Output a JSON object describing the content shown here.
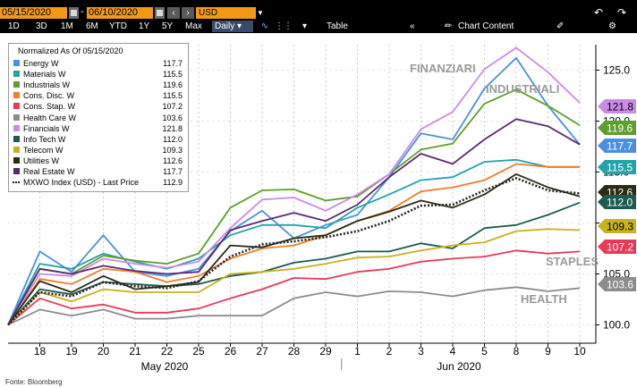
{
  "toolbar": {
    "start_date": "05/15/2020",
    "end_date": "06/10/2020",
    "prev_icon": "chevron-left",
    "next_icon": "chevron-right",
    "currency": "USD",
    "undo_icon": "undo-arrow",
    "redo_icon": "redo-arrow",
    "periods": [
      "1D",
      "3D",
      "1M",
      "6M",
      "YTD",
      "1Y",
      "5Y",
      "Max"
    ],
    "frequency": "Daily",
    "table_label": "Table",
    "chart_content_label": "Chart Content",
    "settings_icon": "gear"
  },
  "legend": {
    "title": "Normalized As Of 05/15/2020",
    "items": [
      {
        "name": "Energy W",
        "value": "117.7",
        "color": "#4a90e2"
      },
      {
        "name": "Materials W",
        "value": "115.5",
        "color": "#22a3a8"
      },
      {
        "name": "Industrials W",
        "value": "119.6",
        "color": "#5e9e2a"
      },
      {
        "name": "Cons. Disc. W",
        "value": "115.5",
        "color": "#f07f2a"
      },
      {
        "name": "Cons. Stap. W",
        "value": "107.2",
        "color": "#e83a5a"
      },
      {
        "name": "Health Care W",
        "value": "103.6",
        "color": "#8c8c8c"
      },
      {
        "name": "Financials W",
        "value": "121.8",
        "color": "#cc8ae8"
      },
      {
        "name": "Info Tech W",
        "value": "112.0",
        "color": "#1c5a52"
      },
      {
        "name": "Telecom W",
        "value": "109.3",
        "color": "#c8b21e"
      },
      {
        "name": "Utilities W",
        "value": "112.6",
        "color": "#2c2c12"
      },
      {
        "name": "Real Estate W",
        "value": "117.7",
        "color": "#5a2a72"
      },
      {
        "name": "MXWO Index (USD) - Last Price",
        "value": "112.9",
        "color": "#222222"
      }
    ]
  },
  "annotations": [
    "FINANZIARI",
    "INDUSTRIALI",
    "STAPLES",
    "HEALTH"
  ],
  "source": "Fonte: Bloomberg",
  "chart_data": {
    "type": "line",
    "title": "",
    "x": [
      "15",
      "18",
      "19",
      "20",
      "21",
      "22",
      "25",
      "26",
      "27",
      "28",
      "29",
      "1",
      "2",
      "3",
      "4",
      "5",
      "8",
      "9",
      "10"
    ],
    "x_tick_labels": [
      "18",
      "19",
      "20",
      "21",
      "22",
      "25",
      "26",
      "27",
      "28",
      "29",
      "1",
      "2",
      "3",
      "4",
      "5",
      "8",
      "9",
      "10"
    ],
    "month_labels": [
      "May 2020",
      "Jun 2020"
    ],
    "xlabel": "",
    "ylabel": "",
    "y_ticks": [
      100.0,
      105.0,
      110.0,
      115.0,
      120.0,
      125.0
    ],
    "y_tick_labels": [
      "100.0",
      "105.0",
      "110.0",
      "115.0",
      "120.0",
      "125.0"
    ],
    "ylim": [
      98.2,
      127.5
    ],
    "grid": "vertical-dashed",
    "legend_position": "top-left",
    "series": [
      {
        "name": "Energy W",
        "color": "#4a90e2",
        "values": [
          100,
          107.2,
          105.2,
          108.8,
          105.2,
          104.8,
          105.5,
          109.2,
          111.2,
          108.5,
          109.8,
          110.8,
          114.5,
          118.8,
          118.2,
          123.2,
          126.2,
          121.5,
          117.7
        ]
      },
      {
        "name": "Materials W",
        "color": "#22a3a8",
        "values": [
          100,
          106,
          105.5,
          107,
          106.2,
          105.5,
          106.5,
          108.8,
          109.8,
          109.8,
          109.5,
          111.5,
          112.8,
          114.2,
          114.5,
          116,
          116.2,
          115.5,
          115.5
        ]
      },
      {
        "name": "Industrials W",
        "color": "#5e9e2a",
        "values": [
          100,
          105.5,
          105,
          106.8,
          106.3,
          106,
          107,
          111.5,
          113.2,
          113.3,
          112.2,
          112.6,
          114.8,
          117.2,
          117.8,
          121.7,
          123.1,
          121.5,
          119.6
        ]
      },
      {
        "name": "Cons. Disc. W",
        "color": "#f07f2a",
        "values": [
          100,
          104.5,
          104,
          105.5,
          105.2,
          104.2,
          104.8,
          106.5,
          107.5,
          107.8,
          108.8,
          110.2,
          111.2,
          113.1,
          113.5,
          114.2,
          115.8,
          115.5,
          115.5
        ]
      },
      {
        "name": "Cons. Stap. W",
        "color": "#e83a5a",
        "values": [
          100,
          102.6,
          101.6,
          102,
          101.2,
          101.2,
          101.6,
          102.6,
          103.5,
          104.6,
          104.5,
          105.2,
          105.5,
          106.2,
          106.5,
          106.7,
          107.3,
          107,
          107.2
        ]
      },
      {
        "name": "Health Care W",
        "color": "#8c8c8c",
        "values": [
          100,
          101.5,
          100.9,
          101.5,
          100.6,
          100.6,
          100.9,
          100.9,
          100.9,
          102.6,
          103.2,
          102.8,
          103.3,
          103.2,
          102.8,
          103.4,
          103.7,
          103.3,
          103.6
        ]
      },
      {
        "name": "Financials W",
        "color": "#cc8ae8",
        "values": [
          100,
          105,
          104.8,
          106.5,
          106,
          105.6,
          106.2,
          109.5,
          112.3,
          112.5,
          111.2,
          112.8,
          114.8,
          119.2,
          120.9,
          125.1,
          127.2,
          124.8,
          121.8
        ]
      },
      {
        "name": "Info Tech W",
        "color": "#1c5a52",
        "values": [
          100,
          103.5,
          103,
          104.2,
          104,
          103.8,
          104,
          104.8,
          105.2,
          106.1,
          106.5,
          107.2,
          107.2,
          108,
          107.5,
          109.5,
          109.8,
          110.8,
          112.0
        ]
      },
      {
        "name": "Telecom W",
        "color": "#c8b21e",
        "values": [
          100,
          103.2,
          102.3,
          103.5,
          103.2,
          103.2,
          103.2,
          105,
          105.2,
          105.5,
          106,
          106.6,
          106.7,
          107.3,
          107.8,
          108.1,
          109.2,
          109.4,
          109.3
        ]
      },
      {
        "name": "Utilities W",
        "color": "#2c2c12",
        "values": [
          100,
          104.3,
          103.2,
          104.8,
          103.5,
          103.8,
          104.2,
          107.8,
          107.6,
          108.5,
          108.8,
          110.2,
          111.1,
          112.2,
          111.5,
          112.8,
          114.8,
          113.5,
          112.6
        ]
      },
      {
        "name": "Real Estate W",
        "color": "#5a2a72",
        "values": [
          100,
          105.5,
          105,
          105.8,
          105.3,
          105,
          105.2,
          109.3,
          110.2,
          111,
          110.2,
          111.8,
          114.5,
          116.8,
          115.8,
          118.2,
          120.2,
          119.5,
          117.7
        ]
      },
      {
        "name": "MXWO Index (USD) - Last Price",
        "color": "#222222",
        "dashed": true,
        "values": [
          100,
          103.2,
          102.8,
          104.2,
          103.8,
          103.6,
          104.3,
          106.7,
          107.9,
          108.2,
          108.6,
          109.2,
          110.2,
          111.7,
          111.8,
          113.2,
          114.4,
          113.2,
          112.9
        ]
      }
    ]
  }
}
